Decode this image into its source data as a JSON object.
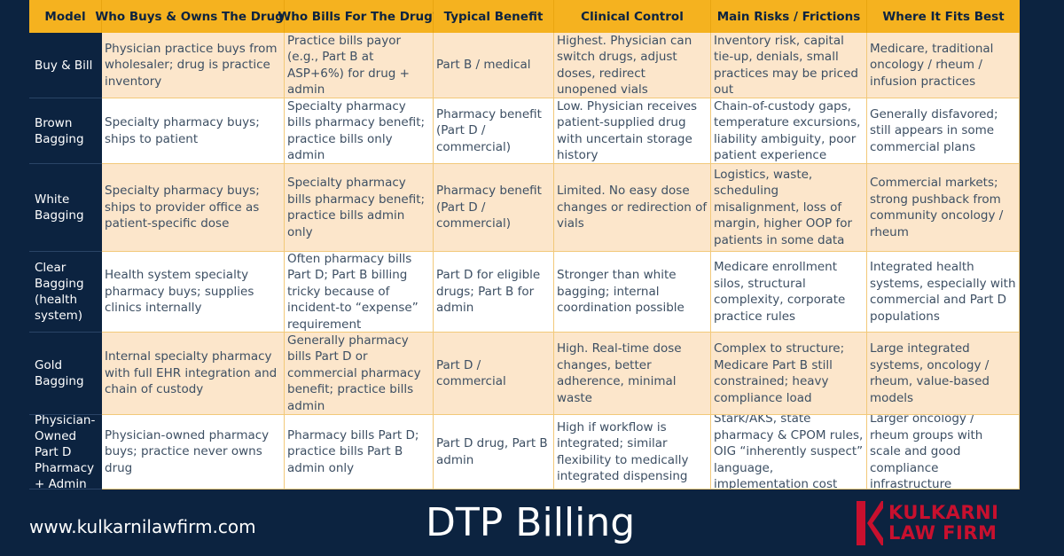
{
  "table": {
    "headers": [
      "Model",
      "Who Buys & Owns The Drug?",
      "Who Bills For The Drug?",
      "Typical Benefit",
      "Clinical Control",
      "Main Risks / Frictions",
      "Where It Fits Best"
    ],
    "rows": [
      {
        "model": "Buy & Bill",
        "buys": "Physician practice buys from wholesaler; drug is practice inventory",
        "bills": "Practice bills payor (e.g., Part B at ASP+6%) for drug + admin",
        "benefit": "Part B / medical",
        "control": "Highest. Physician can switch drugs, adjust doses, redirect unopened vials",
        "risks": "Inventory risk, capital tie-up, denials, small practices may be priced out",
        "fits": "Medicare, traditional oncology / rheum / infusion practices"
      },
      {
        "model": "Brown Bagging",
        "buys": "Specialty pharmacy buys; ships to patient",
        "bills": "Specialty pharmacy bills pharmacy benefit; practice bills only admin",
        "benefit": "Pharmacy benefit (Part D / commercial)",
        "control": "Low. Physician receives patient-supplied drug with uncertain storage history",
        "risks": "Chain-of-custody gaps, temperature excursions, liability ambiguity, poor patient experience",
        "fits": "Generally disfavored; still appears in some commercial plans"
      },
      {
        "model": "White Bagging",
        "buys": "Specialty pharmacy buys; ships to provider office as patient-specific dose",
        "bills": "Specialty pharmacy bills pharmacy benefit; practice bills admin only",
        "benefit": "Pharmacy benefit (Part D / commercial)",
        "control": "Limited. No easy dose changes or redirection of vials",
        "risks": "Logistics, waste, scheduling misalignment, loss of margin, higher OOP for patients in some data",
        "fits": "Commercial markets; strong pushback from community oncology / rheum"
      },
      {
        "model": "Clear Bagging (health system)",
        "buys": "Health system specialty pharmacy buys; supplies clinics internally",
        "bills": "Often pharmacy bills Part D; Part B billing tricky because of incident-to “expense” requirement",
        "benefit": "Part D for eligible drugs; Part B for admin",
        "control": "Stronger than white bagging; internal coordination possible",
        "risks": "Medicare enrollment silos, structural complexity, corporate practice rules",
        "fits": "Integrated health systems, especially with commercial and Part D populations"
      },
      {
        "model": "Gold Bagging",
        "buys": "Internal specialty pharmacy with full EHR integration and chain of custody",
        "bills": "Generally pharmacy bills Part D or commercial pharmacy benefit; practice bills admin",
        "benefit": "Part D / commercial",
        "control": "High. Real-time dose changes, better adherence, minimal waste",
        "risks": "Complex to structure; Medicare Part B still constrained; heavy compliance load",
        "fits": "Large integrated systems, oncology / rheum, value-based models"
      },
      {
        "model": "Physician-Owned Part D Pharmacy + Admin",
        "buys": "Physician-owned pharmacy buys; practice never owns drug",
        "bills": "Pharmacy bills Part D; practice bills Part B admin only",
        "benefit": "Part D drug, Part B admin",
        "control": "High if workflow is integrated; similar flexibility to medically integrated dispensing",
        "risks": "Stark/AKS, state pharmacy & CPOM rules, OIG “inherently suspect” language, implementation cost",
        "fits": "Larger oncology / rheum groups with scale and good compliance infrastructure"
      }
    ]
  },
  "footer": {
    "url": "www.kulkarnilawfirm.com",
    "title": "DTP Billing",
    "logo_line1": "KULKARNI",
    "logo_line2": "LAW FIRM"
  },
  "colors": {
    "navy": "#0c2340",
    "header_gold": "#f5b21f",
    "row_peach": "#fce6cb",
    "brand_red": "#c8102e"
  }
}
